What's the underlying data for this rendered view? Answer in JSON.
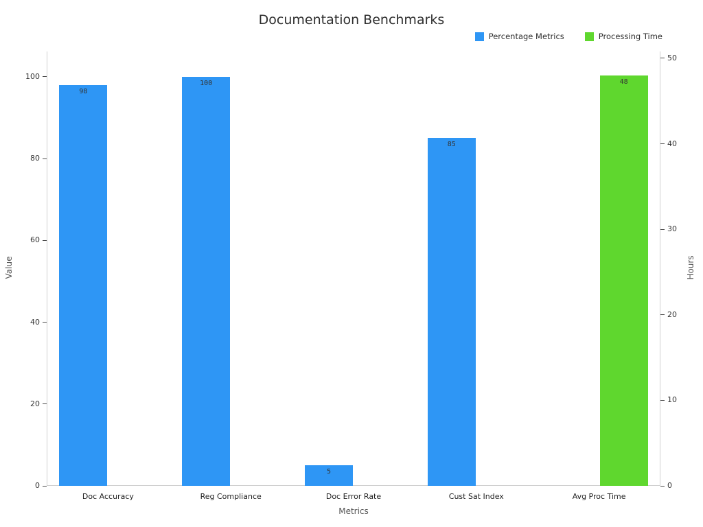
{
  "chart_data": {
    "type": "bar",
    "title": "Documentation Benchmarks",
    "xlabel": "Metrics",
    "categories": [
      "Doc Accuracy",
      "Reg Compliance",
      "Doc Error Rate",
      "Cust Sat Index",
      "Avg Proc Time"
    ],
    "series": [
      {
        "name": "Percentage Metrics",
        "axis": "left",
        "color": "#2e96f5",
        "values": [
          98,
          100,
          5,
          85,
          null
        ]
      },
      {
        "name": "Processing Time",
        "axis": "right",
        "color": "#5fd72e",
        "values": [
          null,
          null,
          null,
          null,
          48
        ]
      }
    ],
    "left_axis": {
      "label": "Value",
      "ticks": [
        0,
        20,
        40,
        60,
        80,
        100
      ],
      "range": [
        0,
        106.2
      ]
    },
    "right_axis": {
      "label": "Hours",
      "ticks": [
        0,
        10,
        20,
        30,
        40,
        50
      ],
      "range": [
        0,
        50.8
      ]
    },
    "legend_position": "top-right",
    "grid": false,
    "background": "#ffffff"
  }
}
